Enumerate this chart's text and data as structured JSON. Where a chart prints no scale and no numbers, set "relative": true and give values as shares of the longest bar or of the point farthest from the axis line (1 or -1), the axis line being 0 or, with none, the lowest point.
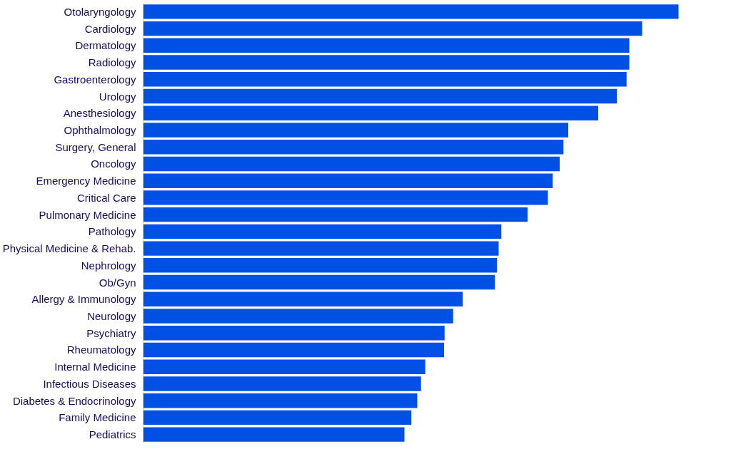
{
  "chart_data": {
    "type": "bar",
    "orientation": "horizontal",
    "relative": true,
    "color": "#0050e6",
    "categories": [
      "Otolaryngology",
      "Cardiology",
      "Dermatology",
      "Radiology",
      "Gastroenterology",
      "Urology",
      "Anesthesiology",
      "Ophthalmology",
      "Surgery, General",
      "Oncology",
      "Emergency Medicine",
      "Critical Care",
      "Pulmonary Medicine",
      "Pathology",
      "Physical Medicine & Rehab.",
      "Nephrology",
      "Ob/Gyn",
      "Allergy & Immunology",
      "Neurology",
      "Psychiatry",
      "Rheumatology",
      "Internal Medicine",
      "Infectious Diseases",
      "Diabetes & Endocrinology",
      "Family Medicine",
      "Pediatrics"
    ],
    "values": [
      1,
      0.932,
      0.908,
      0.908,
      0.903,
      0.885,
      0.85,
      0.794,
      0.785,
      0.778,
      0.765,
      0.756,
      0.718,
      0.669,
      0.664,
      0.661,
      0.657,
      0.597,
      0.579,
      0.563,
      0.562,
      0.527,
      0.519,
      0.512,
      0.501,
      0.488
    ]
  }
}
